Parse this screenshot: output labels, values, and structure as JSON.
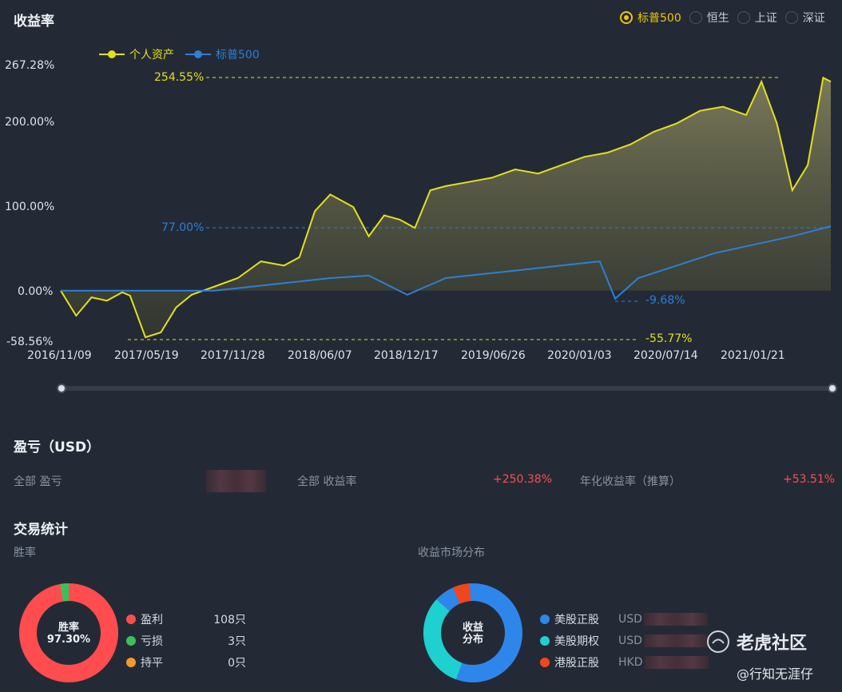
{
  "header": {
    "title": "收益率"
  },
  "benchmarks": [
    {
      "label": "标普500",
      "selected": true
    },
    {
      "label": "恒生",
      "selected": false
    },
    {
      "label": "上证",
      "selected": false
    },
    {
      "label": "深证",
      "selected": false
    }
  ],
  "chart_data": {
    "type": "line",
    "series": [
      {
        "name": "个人资产",
        "color": "#e3e01c"
      },
      {
        "name": "标普500",
        "color": "#2d7fd6"
      }
    ],
    "y_ticks": [
      "267.28%",
      "200.00%",
      "100.00%",
      "0.00%",
      "-58.56%"
    ],
    "x_ticks": [
      "2016/11/09",
      "2017/05/19",
      "2017/11/28",
      "2018/06/07",
      "2018/12/17",
      "2019/06/26",
      "2020/01/03",
      "2020/07/14",
      "2021/01/21"
    ],
    "ylim": [
      -58.56,
      267.28
    ],
    "annotations": {
      "personal_max": "254.55%",
      "personal_min": "-55.77%",
      "sp_max": "77.00%",
      "sp_min": "-9.68%"
    },
    "personal": [
      [
        0,
        0
      ],
      [
        0.02,
        -30
      ],
      [
        0.04,
        -8
      ],
      [
        0.06,
        -12
      ],
      [
        0.08,
        -2
      ],
      [
        0.09,
        -6
      ],
      [
        0.11,
        -55.77
      ],
      [
        0.13,
        -50
      ],
      [
        0.15,
        -20
      ],
      [
        0.17,
        -5
      ],
      [
        0.2,
        5
      ],
      [
        0.23,
        15
      ],
      [
        0.26,
        35
      ],
      [
        0.29,
        30
      ],
      [
        0.31,
        40
      ],
      [
        0.33,
        95
      ],
      [
        0.35,
        115
      ],
      [
        0.38,
        100
      ],
      [
        0.4,
        65
      ],
      [
        0.42,
        90
      ],
      [
        0.44,
        85
      ],
      [
        0.46,
        75
      ],
      [
        0.48,
        120
      ],
      [
        0.5,
        125
      ],
      [
        0.53,
        130
      ],
      [
        0.56,
        135
      ],
      [
        0.59,
        145
      ],
      [
        0.62,
        140
      ],
      [
        0.65,
        150
      ],
      [
        0.68,
        160
      ],
      [
        0.71,
        165
      ],
      [
        0.74,
        175
      ],
      [
        0.77,
        190
      ],
      [
        0.8,
        200
      ],
      [
        0.83,
        215
      ],
      [
        0.86,
        220
      ],
      [
        0.89,
        210
      ],
      [
        0.91,
        250
      ],
      [
        0.93,
        200
      ],
      [
        0.95,
        120
      ],
      [
        0.97,
        150
      ],
      [
        0.99,
        254.55
      ],
      [
        1.0,
        250
      ]
    ],
    "sp500": [
      [
        0,
        0
      ],
      [
        0.2,
        0
      ],
      [
        0.25,
        5
      ],
      [
        0.3,
        10
      ],
      [
        0.35,
        15
      ],
      [
        0.4,
        18
      ],
      [
        0.45,
        -5
      ],
      [
        0.5,
        15
      ],
      [
        0.55,
        20
      ],
      [
        0.6,
        25
      ],
      [
        0.65,
        30
      ],
      [
        0.7,
        35
      ],
      [
        0.72,
        -9.68
      ],
      [
        0.75,
        15
      ],
      [
        0.8,
        30
      ],
      [
        0.85,
        45
      ],
      [
        0.9,
        55
      ],
      [
        0.95,
        65
      ],
      [
        1.0,
        77
      ]
    ]
  },
  "pnl": {
    "title": "盈亏（USD）",
    "total_pnl_label": "全部 盈亏",
    "total_return_label": "全部 收益率",
    "total_return_value": "+250.38%",
    "annual_return_label": "年化收益率（推算）",
    "annual_return_value": "+53.51%"
  },
  "trade_stats": {
    "title": "交易统计",
    "winrate_label": "胜率",
    "winrate_center_line1": "胜率",
    "winrate_center_line2": "97.30%",
    "win_items": [
      {
        "label": "盈利",
        "value": "108只",
        "color": "#ff4d4f"
      },
      {
        "label": "亏损",
        "value": "3只",
        "color": "#3fbf5a"
      },
      {
        "label": "持平",
        "value": "0只",
        "color": "#f29a2e"
      }
    ],
    "market_label": "收益市场分布",
    "market_center_line1": "收益",
    "market_center_line2": "分布",
    "market_items": [
      {
        "label": "美股正股",
        "currency": "USD",
        "color": "#2e86ea"
      },
      {
        "label": "美股期权",
        "currency": "USD",
        "color": "#1fd0d0"
      },
      {
        "label": "港股正股",
        "currency": "HKD",
        "color": "#f0461e"
      }
    ]
  },
  "watermark": {
    "brand": "老虎社区",
    "user": "@行知无涯仔"
  }
}
